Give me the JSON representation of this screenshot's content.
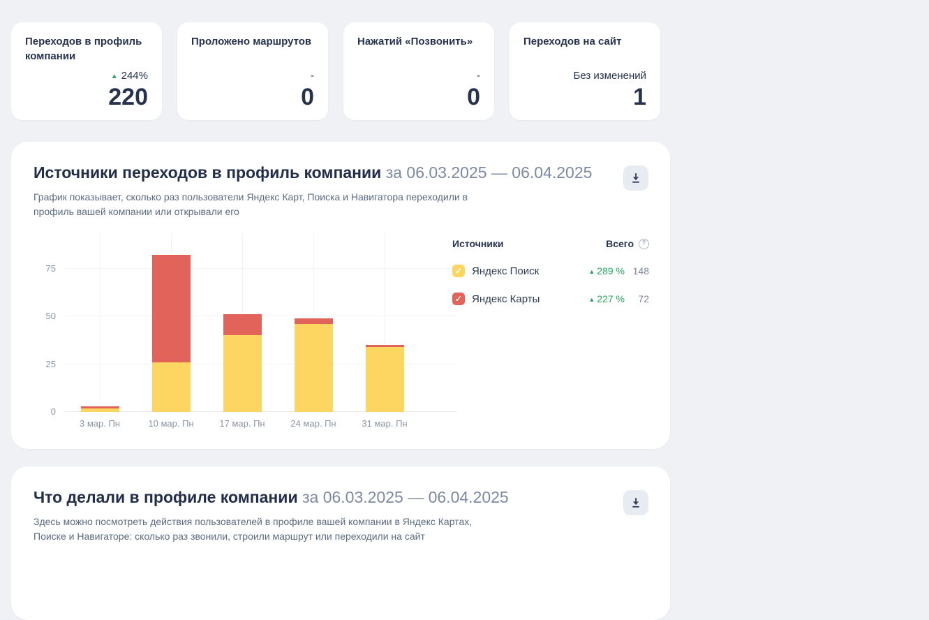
{
  "colors": {
    "positive": "#27a463",
    "dark_text": "#27334d"
  },
  "icons": {
    "up_triangle": "▲",
    "check": "✓",
    "help": "?",
    "download": "download-icon"
  },
  "stat_cards": [
    {
      "title": "Переходов в профиль компании",
      "delta": "244%",
      "delta_direction": "up",
      "value": "220"
    },
    {
      "title": "Проложено маршрутов",
      "delta": "-",
      "delta_direction": "none",
      "value": "0"
    },
    {
      "title": "Нажатий «Позвонить»",
      "delta": "-",
      "delta_direction": "none",
      "value": "0"
    },
    {
      "title": "Переходов на сайт",
      "delta": "Без изменений",
      "delta_direction": "none",
      "value": "1"
    }
  ],
  "sources_card": {
    "title": "Источники переходов в профиль компании",
    "period": "за 06.03.2025 — 06.04.2025",
    "description": "График показывает, сколько раз пользователи Яндекс Карт, Поиска и Навигатора переходили в профиль вашей компании или открывали его",
    "legend": {
      "header_left": "Источники",
      "header_right": "Всего"
    }
  },
  "chart_data": {
    "type": "bar",
    "stacked": true,
    "categories": [
      "3 мар. Пн",
      "10 мар. Пн",
      "17 мар. Пн",
      "24 мар. Пн",
      "31 мар. Пн"
    ],
    "series": [
      {
        "name": "Яндекс Поиск",
        "color": "#fdd662",
        "values": [
          2,
          26,
          40,
          46,
          34
        ],
        "delta_label": "289 %",
        "total": "148"
      },
      {
        "name": "Яндекс Карты",
        "color": "#e2635a",
        "values": [
          1,
          56,
          11,
          3,
          1
        ],
        "delta_label": "227 %",
        "total": "72"
      }
    ],
    "yticks": [
      0,
      25,
      50,
      75
    ],
    "ylim": [
      0,
      92
    ],
    "grid": true,
    "legend_position": "right",
    "title": "Источники переходов в профиль компании",
    "xlabel": "",
    "ylabel": ""
  },
  "actions_card": {
    "title": "Что делали в профиле компании",
    "period": "за 06.03.2025 — 06.04.2025",
    "description": "Здесь можно посмотреть действия пользователей в профиле вашей компании в Яндекс Картах, Поиске и Навигаторе: сколько раз звонили, строили маршрут или переходили на сайт"
  }
}
